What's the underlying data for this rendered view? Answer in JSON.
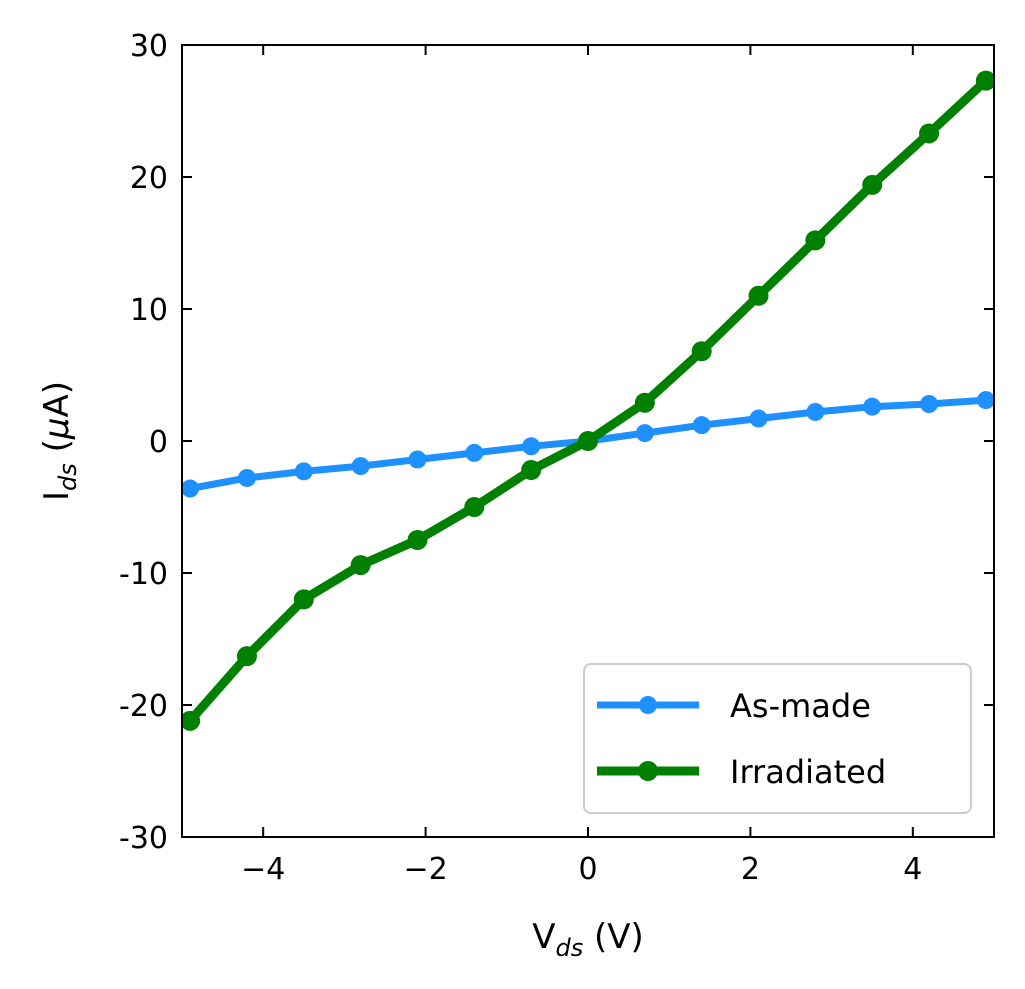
{
  "chart_data": {
    "type": "line",
    "xlabel": {
      "main": "V",
      "sub": "ds",
      "unit": " (V)"
    },
    "ylabel": {
      "main": "I",
      "sub": "ds",
      "unit_prefix": " (",
      "mu": "μ",
      "unit_suffix": "A)"
    },
    "xlim": [
      -5,
      5
    ],
    "ylim": [
      -30,
      30
    ],
    "xticks": [
      -4,
      -2,
      0,
      2,
      4
    ],
    "xtick_labels": [
      "−4",
      "−2",
      "0",
      "2",
      "4"
    ],
    "yticks": [
      -30,
      -20,
      -10,
      0,
      10,
      20,
      30
    ],
    "ytick_labels": [
      "-30",
      "-20",
      "-10",
      "0",
      "10",
      "20",
      "30"
    ],
    "grid": false,
    "legend_position": "bottom-right",
    "series": [
      {
        "name": "As-made",
        "color": "#1e90ff",
        "x": [
          -4.9,
          -4.2,
          -3.5,
          -2.8,
          -2.1,
          -1.4,
          -0.7,
          0,
          0.7,
          1.4,
          2.1,
          2.8,
          3.5,
          4.2,
          4.9
        ],
        "y": [
          -3.6,
          -2.8,
          -2.3,
          -1.9,
          -1.4,
          -0.9,
          -0.4,
          0,
          0.6,
          1.2,
          1.7,
          2.2,
          2.6,
          2.8,
          3.1
        ]
      },
      {
        "name": "Irradiated",
        "color": "#008000",
        "x": [
          -4.9,
          -4.2,
          -3.5,
          -2.8,
          -2.1,
          -1.4,
          -0.7,
          0,
          0.7,
          1.4,
          2.1,
          2.8,
          3.5,
          4.2,
          4.9
        ],
        "y": [
          -21.2,
          -16.3,
          -12.0,
          -9.4,
          -7.5,
          -5.0,
          -2.2,
          0,
          2.9,
          6.8,
          11.0,
          15.2,
          19.4,
          23.3,
          27.3
        ]
      }
    ]
  }
}
